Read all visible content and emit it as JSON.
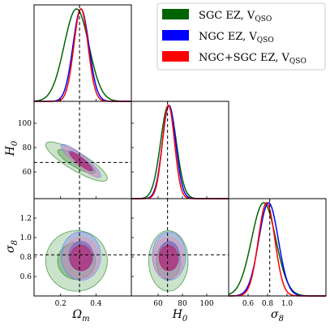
{
  "chart_data": {
    "type": "corner",
    "parameters": [
      "Ωm",
      "H0",
      "σ8"
    ],
    "axis_labels": {
      "omega_m": {
        "base": "Ω",
        "sub": "m"
      },
      "h0": {
        "base": "H",
        "sub": "0"
      },
      "sigma8": {
        "base": "σ",
        "sub": "8"
      }
    },
    "truth": {
      "omega_m": 0.307,
      "h0": 67.77,
      "sigma8": 0.8225
    },
    "ranges": {
      "omega_m": [
        0.05,
        0.6
      ],
      "h0": [
        38,
        118
      ],
      "sigma8": [
        0.4,
        1.4
      ]
    },
    "ticks": {
      "omega_m": [
        "0.2",
        "0.4"
      ],
      "h0": [
        "60",
        "80",
        "100"
      ],
      "h0_row": [
        "60",
        "80",
        "100"
      ],
      "sigma8": [
        "0.6",
        "0.8",
        "1.0"
      ],
      "sigma8_row": [
        "0.6",
        "0.8",
        "1.0",
        "1.2"
      ]
    },
    "series": [
      {
        "name": "SGC EZ, V",
        "sub": "QSO",
        "color": "#006400",
        "omega_m": {
          "mean": 0.29,
          "sigma": 0.07
        },
        "h0": {
          "mean": 68.5,
          "sigma": 6.5
        },
        "sigma8": {
          "mean": 0.76,
          "sigma": 0.125
        },
        "om_h0_corr": -0.85
      },
      {
        "name": "NGC EZ, V",
        "sub": "QSO",
        "color": "#0000ff",
        "omega_m": {
          "mean": 0.315,
          "sigma": 0.045
        },
        "h0": {
          "mean": 69.0,
          "sigma": 5.5
        },
        "sigma8": {
          "mean": 0.81,
          "sigma": 0.1
        },
        "om_h0_corr": -0.9
      },
      {
        "name": "NGC+SGC EZ, V",
        "sub": "QSO",
        "color": "#ff0000",
        "omega_m": {
          "mean": 0.315,
          "sigma": 0.04
        },
        "h0": {
          "mean": 68.5,
          "sigma": 5.0
        },
        "sigma8": {
          "mean": 0.79,
          "sigma": 0.085
        },
        "om_h0_corr": -0.9
      }
    ]
  }
}
